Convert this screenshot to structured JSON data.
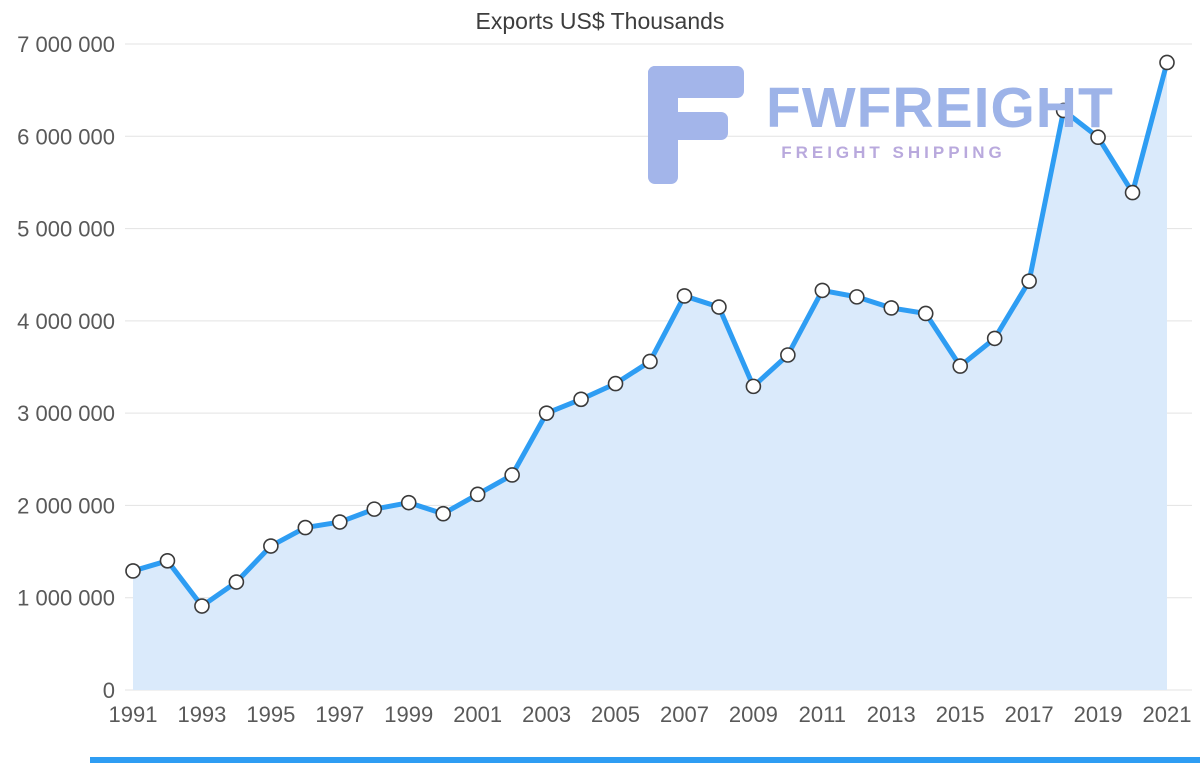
{
  "chart_data": {
    "type": "area",
    "title": "Exports US$ Thousands",
    "x": [
      1991,
      1992,
      1993,
      1994,
      1995,
      1996,
      1997,
      1998,
      1999,
      2000,
      2001,
      2002,
      2003,
      2004,
      2005,
      2006,
      2007,
      2008,
      2009,
      2010,
      2011,
      2012,
      2013,
      2014,
      2015,
      2016,
      2017,
      2018,
      2019,
      2020,
      2021
    ],
    "values": [
      1290000,
      1400000,
      910000,
      1170000,
      1560000,
      1760000,
      1820000,
      1960000,
      2030000,
      1910000,
      2120000,
      2330000,
      3000000,
      3150000,
      3320000,
      3560000,
      4270000,
      4150000,
      3290000,
      3630000,
      4330000,
      4260000,
      4140000,
      4080000,
      3510000,
      3810000,
      4430000,
      6280000,
      5990000,
      5390000,
      6800000
    ],
    "ylim": [
      0,
      7000000
    ],
    "y_ticks": [
      0,
      1000000,
      2000000,
      3000000,
      4000000,
      5000000,
      6000000,
      7000000
    ],
    "y_tick_labels": [
      "0",
      "1 000 000",
      "2 000 000",
      "3 000 000",
      "4 000 000",
      "5 000 000",
      "6 000 000",
      "7 000 000"
    ],
    "x_tick_labels": [
      "1991",
      "1993",
      "1995",
      "1997",
      "1999",
      "2001",
      "2003",
      "2005",
      "2007",
      "2009",
      "2011",
      "2013",
      "2015",
      "2017",
      "2019",
      "2021"
    ],
    "grid": true,
    "legend": false,
    "colors": {
      "line": "#2e9df3",
      "fill": "#daeafb",
      "marker_fill": "#ffffff",
      "marker_stroke": "#3a3a3a",
      "grid": "#e3e3e3",
      "axis_text": "#595959",
      "title": "#3d3d3d"
    }
  },
  "watermark": {
    "brand": "FWFREIGHT",
    "tagline": "FREIGHT SHIPPING",
    "brand_color": "#9db3e8",
    "tagline_color": "#b9a9dd",
    "logo_color": "#a3b5ea"
  },
  "footer_bar_color": "#2e9df3"
}
